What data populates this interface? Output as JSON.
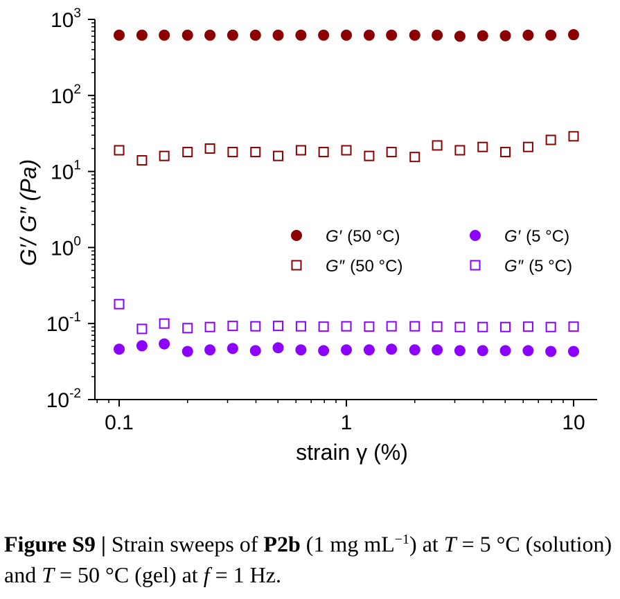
{
  "chart_data": {
    "type": "scatter",
    "xscale": "log",
    "yscale": "log",
    "xlim": [
      0.1,
      10
    ],
    "ylim": [
      0.01,
      1000
    ],
    "xlabel": "strain γ (%)",
    "ylabel": "G′/ G″ (Pa)",
    "x_ticks": [
      {
        "value": 0.1,
        "label": "0.1"
      },
      {
        "value": 1,
        "label": "1"
      },
      {
        "value": 10,
        "label": "10"
      }
    ],
    "y_ticks": [
      {
        "value": 0.01,
        "base": "10",
        "exp": "-2"
      },
      {
        "value": 0.1,
        "base": "10",
        "exp": "-1"
      },
      {
        "value": 1,
        "base": "10",
        "exp": "0"
      },
      {
        "value": 10,
        "base": "10",
        "exp": "1"
      },
      {
        "value": 100,
        "base": "10",
        "exp": "2"
      },
      {
        "value": 1000,
        "base": "10",
        "exp": "3"
      }
    ],
    "x": [
      0.1,
      0.126,
      0.158,
      0.2,
      0.251,
      0.316,
      0.398,
      0.501,
      0.631,
      0.794,
      1.0,
      1.26,
      1.58,
      2.0,
      2.51,
      3.16,
      3.98,
      5.01,
      6.31,
      7.94,
      10.0
    ],
    "legend_placement": "center-right",
    "series": [
      {
        "name": "G′",
        "temp": "(50 °C)",
        "color": "#8b0000",
        "marker": "filled-circle",
        "values": [
          620,
          620,
          620,
          620,
          620,
          620,
          620,
          620,
          620,
          620,
          620,
          620,
          620,
          620,
          620,
          600,
          610,
          610,
          620,
          620,
          630
        ]
      },
      {
        "name": "G″",
        "temp": "(50 °C)",
        "color": "#8b0000",
        "marker": "open-square",
        "values": [
          19,
          14,
          16,
          18,
          20,
          18,
          18,
          16,
          19,
          18,
          19,
          16,
          18,
          15.5,
          22,
          19,
          21,
          18,
          21,
          26,
          29
        ]
      },
      {
        "name": "G′",
        "temp": "(5 °C)",
        "color": "#8b00ff",
        "marker": "filled-circle",
        "values": [
          0.046,
          0.051,
          0.054,
          0.043,
          0.045,
          0.047,
          0.044,
          0.048,
          0.045,
          0.044,
          0.045,
          0.045,
          0.046,
          0.045,
          0.045,
          0.044,
          0.044,
          0.044,
          0.044,
          0.043,
          0.043
        ]
      },
      {
        "name": "G″",
        "temp": "(5 °C)",
        "color": "#8b00ff",
        "marker": "open-square",
        "values": [
          0.18,
          0.085,
          0.1,
          0.087,
          0.09,
          0.093,
          0.092,
          0.093,
          0.092,
          0.091,
          0.092,
          0.091,
          0.092,
          0.092,
          0.091,
          0.09,
          0.09,
          0.09,
          0.091,
          0.09,
          0.091
        ]
      }
    ]
  },
  "caption": {
    "label": "Figure S9",
    "sep": " | ",
    "t1": "Strain sweeps of ",
    "compound": "P2b",
    "t2": " (1 mg mL",
    "sup": "−1",
    "t3": ") at ",
    "T1": "T",
    "t4": " = 5 °C (solution) and ",
    "T2": "T",
    "t5": " = 50 °C (gel) at ",
    "f": "f",
    "t6": " = 1 Hz."
  }
}
